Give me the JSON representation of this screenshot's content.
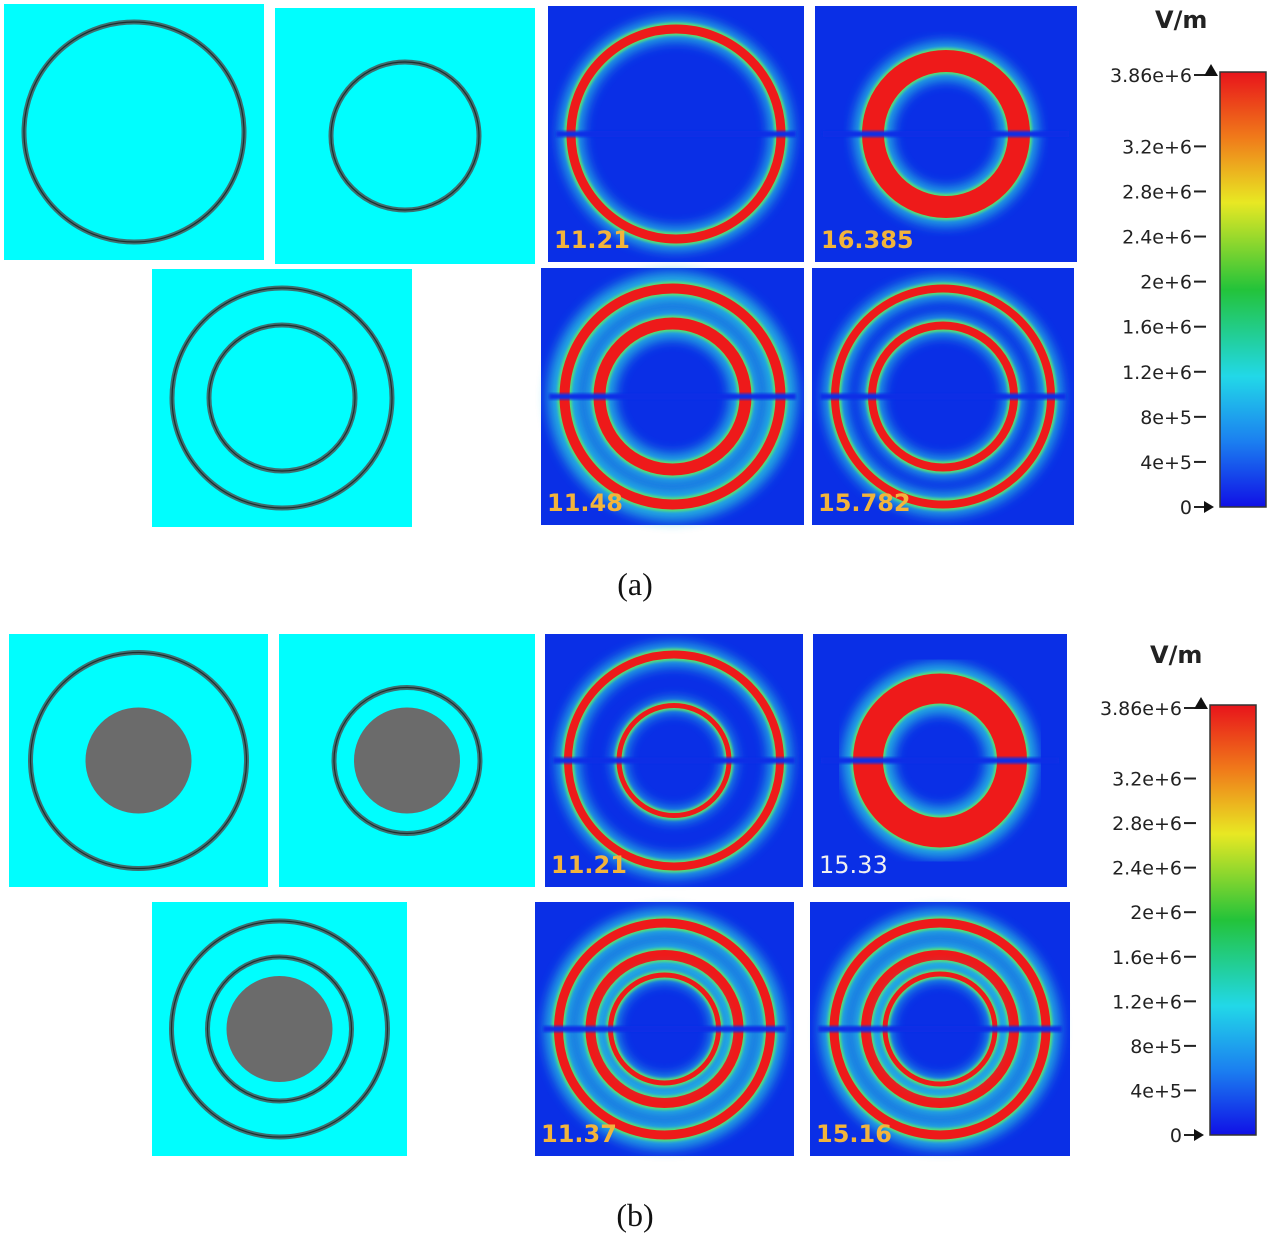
{
  "panels": [
    {
      "caption": "(a)",
      "unit": "V/m",
      "colorbar_labels": [
        "3.86e+6",
        "3.2e+6",
        "2.8e+6",
        "2.4e+6",
        "2e+6",
        "1.6e+6",
        "1.2e+6",
        "8e+5",
        "4e+5",
        "0"
      ],
      "field_labels": [
        "11.21",
        "16.385",
        "11.48",
        "15.782"
      ]
    },
    {
      "caption": "(b)",
      "unit": "V/m",
      "colorbar_labels": [
        "3.86e+6",
        "3.2e+6",
        "2.8e+6",
        "2.4e+6",
        "2e+6",
        "1.6e+6",
        "1.2e+6",
        "8e+5",
        "4e+5",
        "0"
      ],
      "field_labels": [
        "11.21",
        "15.33",
        "11.37",
        "15.16"
      ]
    }
  ]
}
